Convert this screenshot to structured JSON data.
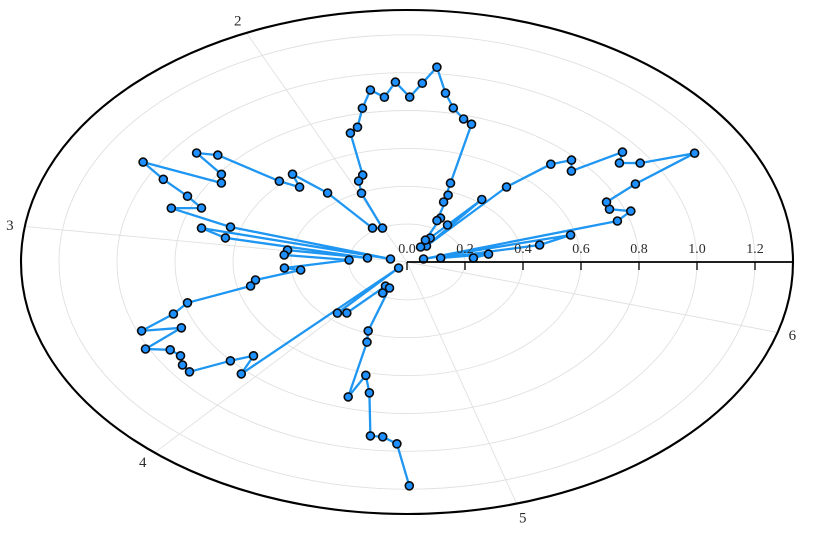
{
  "figure": {
    "background": "#ffffff",
    "colors": {
      "line": "#1e96f2",
      "marker_fill": "#1e90ff",
      "marker_edge": "#0a0a0a",
      "grid": "#e0e0e0",
      "axis": "#000000",
      "boundary": "#000000",
      "tick_label": "#2b2b2b"
    }
  },
  "chart_data": {
    "type": "line",
    "projection": "polar",
    "title": "",
    "legend": null,
    "grid": true,
    "theta_ticks": {
      "values_rad": [
        2,
        3,
        4,
        5,
        6
      ],
      "labels": [
        "2",
        "3",
        "4",
        "5",
        "6"
      ]
    },
    "r_ticks": {
      "values": [
        0.0,
        0.2,
        0.4,
        0.6,
        0.8,
        1.0,
        1.2
      ],
      "labels": [
        "0.0",
        "0.2",
        "0.4",
        "0.6",
        "0.8",
        "1.0",
        "1.2"
      ]
    },
    "r_max": 1.331,
    "theta_range_rad": [
      0,
      4.72
    ],
    "series": [
      {
        "name": "",
        "theta_rad": [
          0.091,
          0.148,
          0.18,
          0.194,
          0.248,
          0.274,
          0.29,
          0.335,
          0.38,
          0.431,
          0.482,
          0.525,
          0.576,
          0.62,
          0.663,
          0.703,
          0.759,
          0.806,
          0.857,
          0.897,
          0.908,
          0.95,
          1.009,
          1.035,
          1.068,
          1.108,
          1.129,
          1.189,
          1.192,
          1.225,
          1.274,
          1.318,
          1.377,
          1.423,
          1.471,
          1.515,
          1.56,
          1.613,
          1.66,
          1.709,
          1.758,
          1.806,
          1.85,
          1.892,
          1.943,
          1.978,
          2.011,
          2.157,
          2.215,
          2.276,
          2.323,
          2.372,
          2.428,
          2.471,
          2.515,
          2.564,
          2.616,
          2.662,
          2.711,
          2.759,
          2.805,
          2.847,
          2.868,
          2.894,
          2.941,
          2.988,
          2.99,
          3.054,
          3.089,
          3.217,
          3.257,
          3.322,
          3.372,
          3.419,
          3.47,
          3.52,
          3.562,
          3.613,
          3.658,
          3.707,
          3.754,
          3.8,
          3.85,
          3.894,
          3.944,
          3.974,
          3.985,
          4.056,
          4.185,
          4.24,
          4.299,
          4.36,
          4.397,
          4.435,
          4.479,
          4.527,
          4.576,
          4.622,
          4.676,
          4.719
        ],
        "r": [
          0.23,
          0.284,
          0.118,
          0.466,
          0.582,
          0.059,
          0.757,
          0.817,
          0.752,
          0.757,
          0.889,
          1.146,
          0.959,
          0.9,
          0.943,
          0.743,
          0.782,
          0.716,
          0.524,
          0.108,
          0.419,
          0.24,
          0.15,
          0.092,
          0.132,
          0.259,
          0.242,
          0.38,
          0.341,
          0.443,
          0.761,
          0.78,
          0.829,
          0.902,
          1.034,
          0.946,
          0.871,
          0.951,
          0.874,
          0.917,
          0.827,
          0.732,
          0.708,
          0.484,
          0.459,
          0.396,
          0.198,
          0.215,
          0.456,
          0.609,
          0.542,
          0.613,
          0.863,
          0.926,
          0.79,
          0.764,
          1.052,
          0.947,
          0.833,
          0.764,
          0.861,
          0.636,
          0.059,
          0.731,
          0.639,
          0.138,
          0.417,
          0.425,
          0.2,
          0.424,
          0.369,
          0.531,
          0.554,
          0.787,
          0.851,
          0.985,
          0.852,
          1.012,
          0.939,
          0.925,
          0.946,
          0.948,
          0.802,
          0.725,
          0.822,
          0.043,
          0.361,
          0.34,
          0.147,
          0.184,
          0.15,
          0.388,
          0.445,
          0.741,
          0.615,
          0.703,
          0.927,
          0.927,
          0.961,
          1.182
        ]
      }
    ]
  }
}
